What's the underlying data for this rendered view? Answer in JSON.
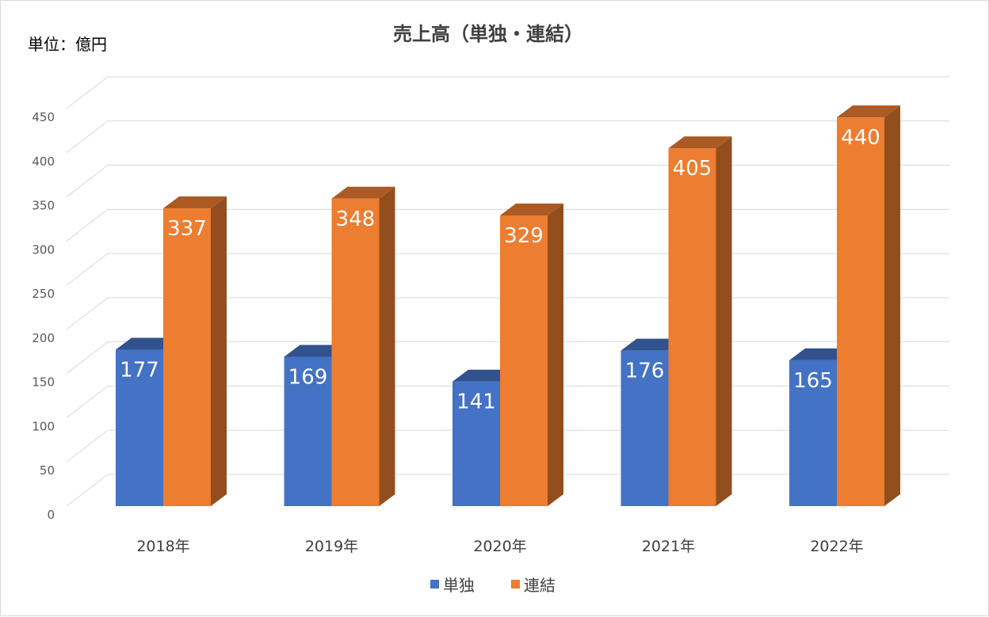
{
  "chart_data": {
    "type": "bar",
    "title": "売上高（単独・連結）",
    "unit_label": "単位：億円",
    "categories": [
      "2018年",
      "2019年",
      "2020年",
      "2021年",
      "2022年"
    ],
    "series": [
      {
        "name": "単独",
        "values": [
          177,
          169,
          141,
          176,
          165
        ],
        "color": "#4472c4"
      },
      {
        "name": "連結",
        "values": [
          337,
          348,
          329,
          405,
          440
        ],
        "color": "#ed7d31"
      }
    ],
    "y_ticks": [
      "0",
      "50",
      "100",
      "150",
      "200",
      "250",
      "300",
      "350",
      "400",
      "450"
    ],
    "ylim": [
      0,
      450
    ],
    "grid": true,
    "legend_position": "bottom",
    "style": "3d-clustered-column"
  }
}
